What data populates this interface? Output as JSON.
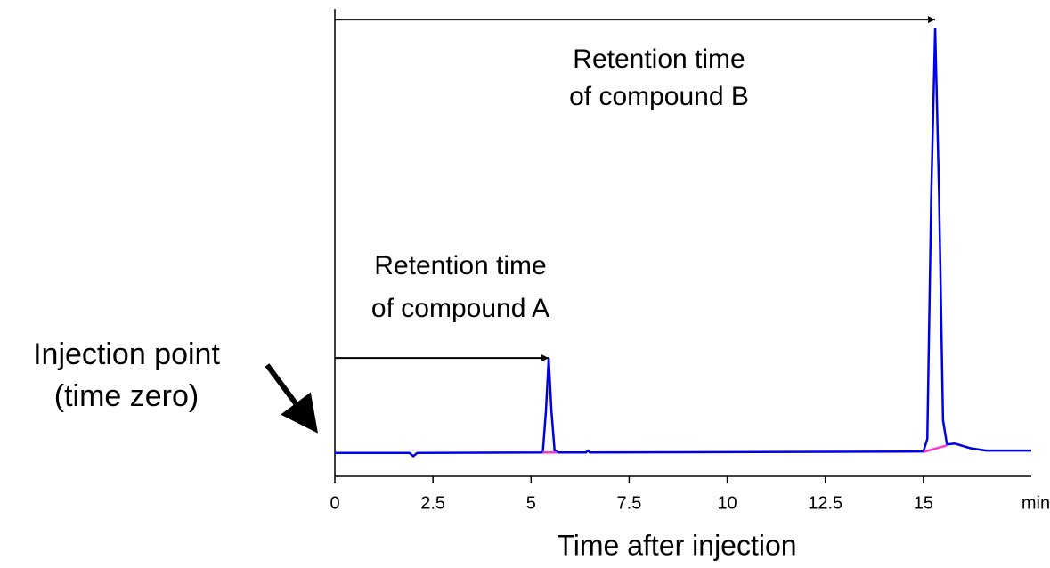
{
  "chart_data": {
    "type": "line",
    "xlabel": "Time after injection",
    "x_unit": "min",
    "xlim": [
      0,
      17.75
    ],
    "xticks": [
      0,
      2.5,
      5,
      7.5,
      10,
      12.5,
      15
    ],
    "ylim": [
      0,
      100
    ],
    "series": [
      {
        "color": "#0000e6",
        "x": [
          0,
          1.9,
          2.0,
          2.1,
          5.3,
          5.38,
          5.45,
          5.52,
          5.6,
          5.7,
          6.4,
          6.45,
          6.5,
          15.0,
          15.1,
          15.2,
          15.3,
          15.4,
          15.5,
          15.6,
          15.8,
          16.2,
          16.6,
          17.75
        ],
        "values": [
          5.0,
          5.0,
          4.3,
          5.0,
          5.1,
          14,
          25.3,
          14,
          5.5,
          5.1,
          5.1,
          5.5,
          5.1,
          5.3,
          8,
          60,
          95.8,
          60,
          12,
          6.8,
          7.0,
          6.0,
          5.5,
          5.5
        ]
      },
      {
        "color": "#ff33cc",
        "x": [
          5.3,
          5.65
        ],
        "values": [
          5.1,
          5.1
        ]
      },
      {
        "color": "#ff33cc",
        "x": [
          15.0,
          15.6
        ],
        "values": [
          5.2,
          6.6
        ]
      }
    ],
    "annotations": [
      {
        "lines": [
          "Retention time",
          "of compound A"
        ],
        "x_end": 5.45,
        "y": 25.3
      },
      {
        "lines": [
          "Retention time",
          "of compound B"
        ],
        "x_end": 15.3,
        "y": 97.7
      }
    ],
    "injection_label": [
      "Injection point",
      "(time zero)"
    ]
  }
}
